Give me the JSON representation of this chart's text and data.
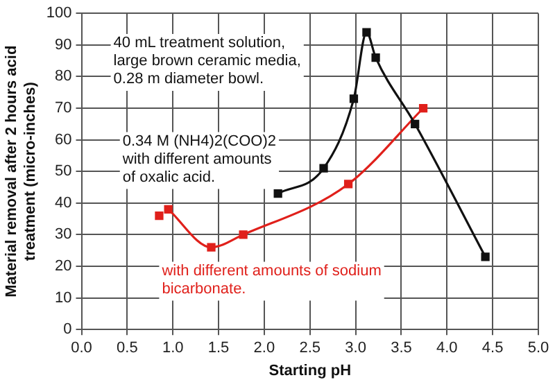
{
  "chart_data": {
    "type": "line",
    "xlabel": "Starting pH",
    "ylabel": "Material removal after 2 hours acid treatment   (micro-inches)",
    "xlim": [
      0,
      5
    ],
    "xticks": [
      {
        "value": 0,
        "label": "0.0"
      },
      {
        "value": 0.5,
        "label": "0.5"
      },
      {
        "value": 1,
        "label": "1.0"
      },
      {
        "value": 1.5,
        "label": "1.5"
      },
      {
        "value": 2,
        "label": "2.0"
      },
      {
        "value": 2.5,
        "label": "2.5"
      },
      {
        "value": 3,
        "label": "3.0"
      },
      {
        "value": 3.5,
        "label": "3.5"
      },
      {
        "value": 4,
        "label": "4.0"
      },
      {
        "value": 4.5,
        "label": "4.5"
      },
      {
        "value": 5,
        "label": "5.0"
      }
    ],
    "ylim": [
      0,
      100
    ],
    "yticks": [
      0,
      10,
      20,
      30,
      40,
      50,
      60,
      70,
      80,
      90,
      100
    ],
    "grid": true,
    "legend": false,
    "marker": "square",
    "line_style": "solid",
    "annotations": [
      "40 mL treatment solution, large brown ceramic media, 0.28 m diameter bowl."
    ],
    "series": [
      {
        "name": "0.34 M (NH4)2(COO)2 with different amounts of oxalic acid.",
        "color": "#111111",
        "x": [
          2.15,
          2.65,
          2.98,
          3.12,
          3.22,
          3.65,
          4.42
        ],
        "values": [
          43,
          51,
          73,
          94,
          86,
          65,
          23
        ]
      },
      {
        "name": "with different amounts of sodium bicarbonate.",
        "color": "#e0201b",
        "x": [
          0.95,
          1.42,
          1.77,
          2.92,
          3.74
        ],
        "values": [
          38,
          26,
          30,
          46,
          70
        ]
      },
      {
        "type": "scatter",
        "color": "#e0201b",
        "x": [
          0.85
        ],
        "values": [
          36
        ]
      }
    ]
  }
}
